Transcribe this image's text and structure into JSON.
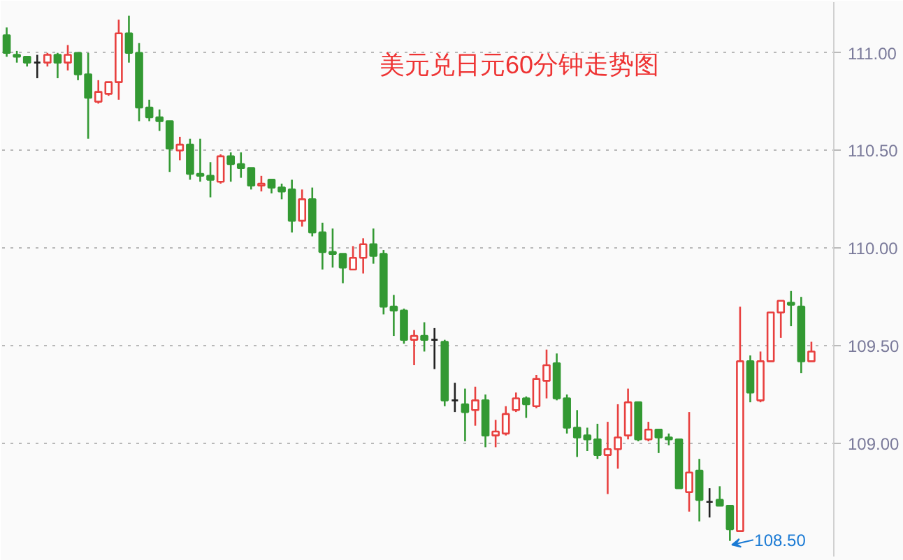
{
  "chart_data": {
    "type": "candlestick",
    "title": "美元兑日元60分钟走势图",
    "categories": [
      null,
      null,
      null,
      null,
      null,
      null,
      null,
      null,
      null,
      null,
      null,
      null,
      null,
      null,
      null,
      null,
      null,
      null,
      null,
      null,
      null,
      null,
      null,
      null,
      null,
      null,
      null,
      null,
      null,
      null,
      null,
      null,
      null,
      null,
      null,
      null,
      null,
      null,
      null,
      null,
      null,
      null,
      null,
      null,
      null,
      null,
      null,
      null,
      null,
      null,
      null,
      null,
      null,
      null,
      null,
      null,
      null,
      null,
      null,
      null,
      null,
      null,
      null,
      null,
      null,
      null,
      null,
      null,
      null,
      null,
      null,
      null,
      null,
      null,
      null,
      null,
      null,
      null,
      null,
      null
    ],
    "ohlc": [
      [
        111.09,
        111.13,
        110.98,
        111.0
      ],
      [
        110.99,
        111.01,
        110.95,
        110.98
      ],
      [
        110.98,
        110.98,
        110.93,
        110.95
      ],
      [
        110.95,
        110.99,
        110.87,
        110.95
      ],
      [
        110.95,
        111.0,
        110.93,
        110.99
      ],
      [
        110.99,
        111.0,
        110.87,
        110.95
      ],
      [
        110.95,
        111.04,
        110.91,
        110.99
      ],
      [
        111.0,
        111.0,
        110.86,
        110.89
      ],
      [
        110.89,
        111.0,
        110.56,
        110.77
      ],
      [
        110.75,
        110.86,
        110.74,
        110.8
      ],
      [
        110.79,
        110.85,
        110.78,
        110.85
      ],
      [
        110.85,
        111.17,
        110.76,
        111.1
      ],
      [
        111.1,
        111.19,
        110.95,
        111.0
      ],
      [
        111.0,
        111.05,
        110.65,
        110.72
      ],
      [
        110.72,
        110.76,
        110.65,
        110.67
      ],
      [
        110.67,
        110.71,
        110.6,
        110.65
      ],
      [
        110.65,
        110.65,
        110.39,
        110.51
      ],
      [
        110.5,
        110.57,
        110.45,
        110.53
      ],
      [
        110.53,
        110.56,
        110.35,
        110.38
      ],
      [
        110.38,
        110.56,
        110.34,
        110.37
      ],
      [
        110.37,
        110.44,
        110.26,
        110.35
      ],
      [
        110.34,
        110.48,
        110.33,
        110.47
      ],
      [
        110.47,
        110.49,
        110.34,
        110.43
      ],
      [
        110.43,
        110.49,
        110.36,
        110.41
      ],
      [
        110.41,
        110.41,
        110.3,
        110.32
      ],
      [
        110.32,
        110.37,
        110.29,
        110.33
      ],
      [
        110.35,
        110.35,
        110.28,
        110.31
      ],
      [
        110.31,
        110.33,
        110.25,
        110.29
      ],
      [
        110.3,
        110.35,
        110.08,
        110.14
      ],
      [
        110.14,
        110.3,
        110.11,
        110.25
      ],
      [
        110.25,
        110.31,
        110.06,
        110.08
      ],
      [
        110.08,
        110.13,
        109.89,
        109.98
      ],
      [
        109.98,
        110.1,
        109.9,
        109.97
      ],
      [
        109.97,
        109.97,
        109.82,
        109.9
      ],
      [
        109.89,
        110.01,
        109.89,
        109.95
      ],
      [
        109.95,
        110.05,
        109.87,
        110.02
      ],
      [
        110.02,
        110.1,
        109.92,
        109.96
      ],
      [
        109.97,
        109.99,
        109.66,
        109.7
      ],
      [
        109.7,
        109.76,
        109.55,
        109.68
      ],
      [
        109.68,
        109.69,
        109.51,
        109.53
      ],
      [
        109.53,
        109.58,
        109.4,
        109.55
      ],
      [
        109.55,
        109.62,
        109.47,
        109.53
      ],
      [
        109.53,
        109.59,
        109.38,
        109.53
      ],
      [
        109.52,
        109.53,
        109.19,
        109.22
      ],
      [
        109.22,
        109.31,
        109.16,
        109.22
      ],
      [
        109.2,
        109.28,
        109.01,
        109.16
      ],
      [
        109.17,
        109.29,
        109.09,
        109.22
      ],
      [
        109.22,
        109.25,
        108.98,
        109.04
      ],
      [
        109.04,
        109.12,
        108.98,
        109.06
      ],
      [
        109.05,
        109.19,
        109.04,
        109.15
      ],
      [
        109.17,
        109.26,
        109.16,
        109.23
      ],
      [
        109.23,
        109.24,
        109.13,
        109.2
      ],
      [
        109.19,
        109.35,
        109.18,
        109.33
      ],
      [
        109.32,
        109.48,
        109.23,
        109.4
      ],
      [
        109.41,
        109.46,
        109.22,
        109.23
      ],
      [
        109.23,
        109.25,
        109.05,
        109.08
      ],
      [
        109.08,
        109.17,
        108.93,
        109.03
      ],
      [
        109.04,
        109.08,
        108.96,
        109.02
      ],
      [
        109.02,
        109.1,
        108.92,
        108.94
      ],
      [
        108.94,
        109.11,
        108.74,
        108.97
      ],
      [
        108.97,
        109.2,
        108.87,
        109.03
      ],
      [
        109.04,
        109.28,
        109.02,
        109.21
      ],
      [
        109.21,
        109.21,
        109.01,
        109.02
      ],
      [
        109.02,
        109.11,
        109.01,
        109.07
      ],
      [
        109.07,
        109.07,
        108.95,
        109.03
      ],
      [
        109.03,
        109.05,
        108.99,
        109.02
      ],
      [
        109.02,
        109.02,
        108.77,
        108.77
      ],
      [
        108.75,
        109.16,
        108.65,
        108.85
      ],
      [
        108.86,
        108.92,
        108.6,
        108.71
      ],
      [
        108.7,
        108.77,
        108.62,
        108.7
      ],
      [
        108.71,
        108.78,
        108.68,
        108.68
      ],
      [
        108.68,
        108.68,
        108.5,
        108.56
      ],
      [
        108.55,
        109.7,
        108.55,
        109.42
      ],
      [
        109.42,
        109.45,
        109.21,
        109.26
      ],
      [
        109.22,
        109.47,
        109.21,
        109.42
      ],
      [
        109.42,
        109.67,
        109.42,
        109.67
      ],
      [
        109.67,
        109.73,
        109.54,
        109.73
      ],
      [
        109.72,
        109.78,
        109.6,
        109.71
      ],
      [
        109.7,
        109.75,
        109.36,
        109.42
      ],
      [
        109.42,
        109.52,
        109.42,
        109.47
      ]
    ],
    "colors": [
      "#339933",
      "#339933",
      "#339933",
      "#222222",
      "#e8403f",
      "#339933",
      "#e8403f",
      "#339933",
      "#339933",
      "#e8403f",
      "#e8403f",
      "#e8403f",
      "#339933",
      "#339933",
      "#339933",
      "#339933",
      "#339933",
      "#e8403f",
      "#339933",
      "#339933",
      "#339933",
      "#e8403f",
      "#339933",
      "#339933",
      "#339933",
      "#e8403f",
      "#339933",
      "#339933",
      "#339933",
      "#e8403f",
      "#339933",
      "#339933",
      "#339933",
      "#339933",
      "#e8403f",
      "#e8403f",
      "#339933",
      "#339933",
      "#339933",
      "#339933",
      "#e8403f",
      "#339933",
      "#222222",
      "#339933",
      "#222222",
      "#339933",
      "#e8403f",
      "#339933",
      "#e8403f",
      "#e8403f",
      "#e8403f",
      "#339933",
      "#e8403f",
      "#e8403f",
      "#339933",
      "#339933",
      "#339933",
      "#339933",
      "#339933",
      "#e8403f",
      "#e8403f",
      "#e8403f",
      "#339933",
      "#e8403f",
      "#339933",
      "#339933",
      "#339933",
      "#e8403f",
      "#339933",
      "#222222",
      "#339933",
      "#339933",
      "#e8403f",
      "#339933",
      "#e8403f",
      "#e8403f",
      "#e8403f",
      "#339933",
      "#339933",
      "#e8403f"
    ],
    "annotations": [
      "108.50"
    ],
    "ylim": [
      108.42,
      111.26
    ],
    "yticks": [
      {
        "value": 109,
        "label": "109.00"
      },
      {
        "value": 109.5,
        "label": "109.50"
      },
      {
        "value": 110,
        "label": "110.00"
      },
      {
        "value": 110.5,
        "label": "110.50"
      },
      {
        "value": 111,
        "label": "111.00"
      }
    ],
    "grid": "y"
  }
}
